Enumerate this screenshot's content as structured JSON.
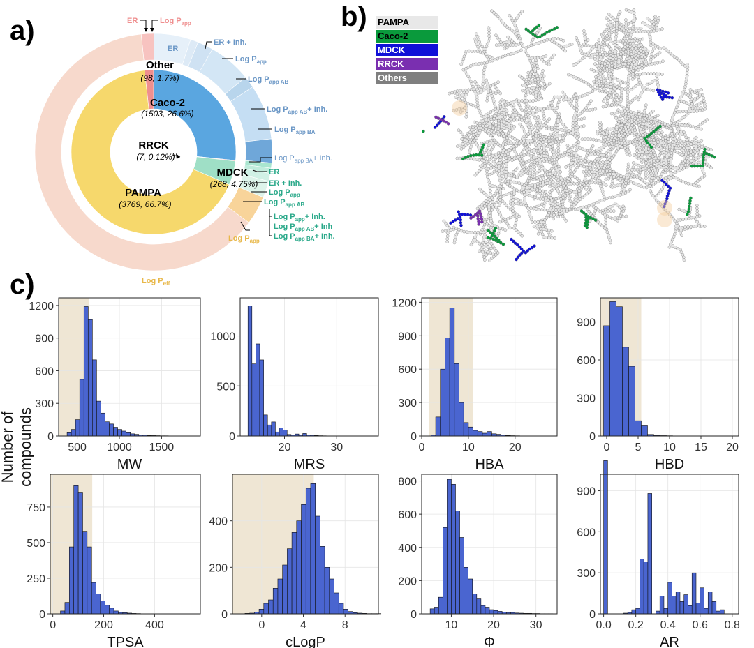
{
  "panels": {
    "a": "a)",
    "b": "b)",
    "c": "c)"
  },
  "donut": {
    "inner": [
      {
        "name": "Caco-2",
        "count": "(1503, 26.6%)",
        "value": 1503,
        "color": "#5aa6e0"
      },
      {
        "name": "MDCK",
        "count": "(268, 4.75%)",
        "value": 268,
        "color": "#9fdfc6"
      },
      {
        "name": "PAMPA",
        "count": "(3769, 66.7%)",
        "value": 3769,
        "color": "#f6d86c"
      },
      {
        "name": "Other",
        "count": "(98, 1.7%)",
        "value": 98,
        "color": "#ef8f8f"
      },
      {
        "name": "RRCK",
        "count": "(7, 0.12%)",
        "value": 7,
        "color": "#d62020"
      }
    ],
    "outer": [
      {
        "value": 98,
        "color": "#f7c3c0"
      },
      {
        "value": 280,
        "color": "#e6f0f9"
      },
      {
        "value": 60,
        "color": "#ddeaf6"
      },
      {
        "value": 120,
        "color": "#cfe2f3"
      },
      {
        "value": 330,
        "color": "#d3e6f5"
      },
      {
        "value": 90,
        "color": "#b8d5ec"
      },
      {
        "value": 420,
        "color": "#c5def3"
      },
      {
        "value": 183,
        "color": "#6fa7d9"
      },
      {
        "value": 40,
        "color": "#a9e5cf"
      },
      {
        "value": 40,
        "color": "#c0ecdc"
      },
      {
        "value": 60,
        "color": "#d0f1e5"
      },
      {
        "value": 128,
        "color": "#ddf4ea"
      },
      {
        "value": 220,
        "color": "#f8d49a"
      },
      {
        "value": 3549,
        "color": "#f7d9cc"
      }
    ],
    "center": {
      "name": "RRCK",
      "count": "(7, 0.12%)"
    },
    "labels": {
      "er_top": "ER",
      "logp_top": "Log P",
      "caco_er": "ER",
      "caco_er_inh": "ER + Inh.",
      "caco_logp": "Log P",
      "caco_logp_ab": "Log P",
      "caco_logp_ab_inh": "Log P",
      "caco_logp_ba": "Log P",
      "caco_logp_ba_inh": "Log P",
      "mdck_er": "ER",
      "mdck_er_inh": "ER + Inh.",
      "mdck_logp": "Log P",
      "mdck_logp_ab": "Log P",
      "mdck_logp_inh": "Log P",
      "mdck_logp_ab_inh": "Log P",
      "mdck_logp_ba_inh": "Log P",
      "pampa_logp": "Log P",
      "pampa_logpeff": "Log P",
      "sub_app": "app",
      "sub_app_ab": "app AB",
      "sub_app_ba": "app BA",
      "sub_eff": "eff",
      "suf_ab_inh": "+ Inh.",
      "suf_ba_inh": "+ Inh.",
      "suf_inh": "+ Inh.",
      "suf_ab_inh2": "+ Inh",
      "suf_ba_inh2": "+ Inh."
    }
  },
  "legend_b": [
    {
      "label": "PAMPA",
      "bg": "#e8e8e8",
      "fg": "#000000"
    },
    {
      "label": "Caco-2",
      "bg": "#0a9a3c",
      "fg": "#000000"
    },
    {
      "label": "MDCK",
      "bg": "#1010d8",
      "fg": "#ffffff"
    },
    {
      "label": "RRCK",
      "bg": "#7a2fb0",
      "fg": "#ffffff"
    },
    {
      "label": "Others",
      "bg": "#7f7f7f",
      "fg": "#ffffff"
    }
  ],
  "hist_ylabel": "Number of compounds",
  "chart_data": [
    {
      "type": "bar",
      "xlabel": "MW",
      "xlim": [
        280,
        1960
      ],
      "ylim": [
        0,
        1270
      ],
      "xticks": [
        500,
        1000,
        1500
      ],
      "yticks": [
        0,
        300,
        600,
        900,
        1200
      ],
      "shade": [
        280,
        640
      ],
      "bin_start": 380,
      "bin_width": 50,
      "values": [
        30,
        60,
        150,
        520,
        1190,
        1070,
        700,
        320,
        210,
        130,
        110,
        80,
        60,
        45,
        30,
        20,
        15,
        10,
        8,
        5,
        4,
        3,
        2,
        2,
        1,
        1,
        1,
        1,
        1,
        1,
        0,
        0
      ]
    },
    {
      "type": "bar",
      "xlabel": "MRS",
      "xlim": [
        11.5,
        38
      ],
      "ylim": [
        0,
        1380
      ],
      "xticks": [
        20,
        30
      ],
      "yticks": [
        0,
        500,
        1000
      ],
      "shade": null,
      "bin_start": 13,
      "bin_width": 0.75,
      "values": [
        1300,
        720,
        920,
        760,
        210,
        110,
        140,
        40,
        80,
        60,
        15,
        10,
        20,
        10,
        25,
        10,
        8,
        5,
        3,
        2,
        1,
        1,
        1,
        1,
        1,
        0,
        0,
        0,
        0,
        0,
        0,
        0,
        0,
        0
      ]
    },
    {
      "type": "bar",
      "xlabel": "HBA",
      "xlim": [
        0,
        29
      ],
      "ylim": [
        0,
        1240
      ],
      "xticks": [
        0,
        10,
        20
      ],
      "yticks": [
        0,
        300,
        600,
        900,
        1200
      ],
      "shade": [
        1.5,
        11
      ],
      "bin_start": 2,
      "bin_width": 1,
      "values": [
        10,
        170,
        600,
        880,
        1150,
        650,
        300,
        120,
        80,
        50,
        40,
        25,
        40,
        20,
        15,
        10,
        5,
        3,
        2,
        1,
        1,
        1,
        1,
        1,
        1,
        1
      ]
    },
    {
      "type": "bar",
      "xlabel": "HBD",
      "xlim": [
        -1,
        21
      ],
      "ylim": [
        0,
        1090
      ],
      "xticks": [
        0,
        5,
        10,
        15,
        20
      ],
      "yticks": [
        0,
        300,
        600,
        900
      ],
      "shade": [
        -1,
        5.5
      ],
      "bin_start": -0.5,
      "bin_width": 1,
      "values": [
        870,
        1060,
        1020,
        700,
        550,
        120,
        80,
        12,
        5,
        3,
        2,
        1,
        1,
        1,
        1,
        1,
        1,
        1,
        1,
        1,
        1
      ]
    },
    {
      "type": "bar",
      "xlabel": "TPSA",
      "xlim": [
        -10,
        580
      ],
      "ylim": [
        0,
        980
      ],
      "xticks": [
        0,
        200,
        400
      ],
      "yticks": [
        0,
        250,
        500,
        750
      ],
      "shade": [
        -10,
        155
      ],
      "bin_start": 30,
      "bin_width": 17.5,
      "values": [
        20,
        80,
        470,
        900,
        850,
        580,
        470,
        220,
        140,
        90,
        60,
        40,
        20,
        10,
        8,
        5,
        3,
        2,
        1,
        1,
        1,
        1,
        1,
        0,
        0,
        0,
        0,
        0,
        0,
        1
      ]
    },
    {
      "type": "bar",
      "xlabel": "cLogP",
      "xlim": [
        -2.8,
        11.2
      ],
      "ylim": [
        0,
        600
      ],
      "xticks": [
        0,
        4,
        8
      ],
      "yticks": [
        0,
        200,
        400
      ],
      "shade": [
        -2.8,
        5
      ],
      "bin_start": -1.6,
      "bin_width": 0.45,
      "values": [
        2,
        3,
        8,
        20,
        45,
        60,
        110,
        150,
        210,
        280,
        350,
        400,
        470,
        540,
        560,
        420,
        290,
        200,
        150,
        90,
        45,
        20,
        10,
        5,
        3,
        2,
        1,
        1,
        1
      ]
    },
    {
      "type": "bar",
      "xlabel": "Φ",
      "xlim": [
        3,
        35
      ],
      "ylim": [
        0,
        840
      ],
      "xticks": [
        10,
        20,
        30
      ],
      "yticks": [
        0,
        200,
        400,
        600,
        800
      ],
      "shade": null,
      "bin_start": 5,
      "bin_width": 1,
      "values": [
        30,
        40,
        100,
        520,
        810,
        780,
        620,
        460,
        280,
        210,
        120,
        90,
        50,
        40,
        25,
        20,
        15,
        10,
        8,
        8,
        5,
        4,
        3,
        3,
        2,
        2,
        1,
        1,
        1
      ]
    },
    {
      "type": "bar",
      "xlabel": "AR",
      "xlim": [
        -0.02,
        0.84
      ],
      "ylim": [
        0,
        1020
      ],
      "xticks": [
        0.0,
        0.2,
        0.4,
        0.6,
        0.8
      ],
      "yticks": [
        0,
        300,
        600,
        900
      ],
      "shade": null,
      "bin_start": 0.0,
      "bin_width": 0.025,
      "values": [
        1120,
        0,
        0,
        0,
        0,
        5,
        10,
        30,
        40,
        400,
        380,
        880,
        0,
        20,
        130,
        40,
        230,
        130,
        160,
        90,
        140,
        60,
        300,
        80,
        190,
        40,
        160,
        90,
        20,
        30,
        0,
        0
      ]
    }
  ]
}
